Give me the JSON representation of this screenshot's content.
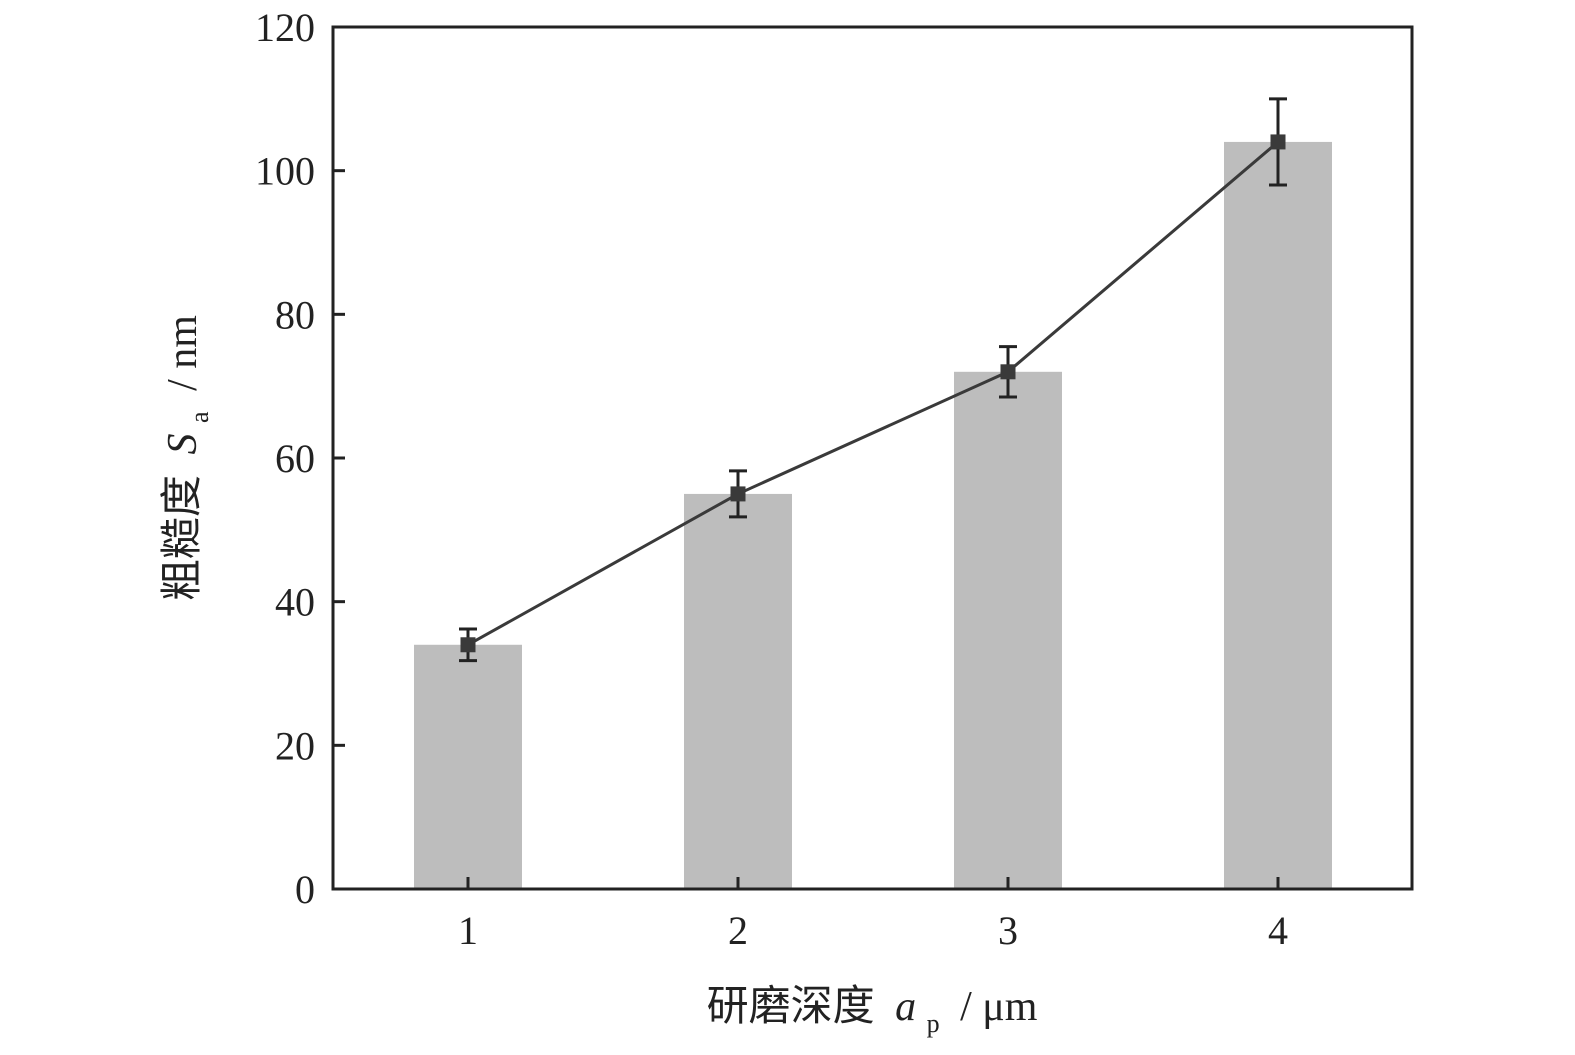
{
  "chart_data": {
    "type": "bar",
    "categories": [
      "1",
      "2",
      "3",
      "4"
    ],
    "series": [
      {
        "type": "bar",
        "values": [
          34,
          55,
          72,
          104
        ],
        "color": "#bdbdbd"
      },
      {
        "type": "line",
        "values": [
          34,
          55,
          72,
          104
        ],
        "error": [
          2.2,
          3.2,
          3.5,
          6.0
        ],
        "color": "#3a3a3a",
        "marker": "square"
      }
    ],
    "xlabel": {
      "prefix": "研磨深度",
      "symbol": "a",
      "subscript": "p",
      "unit": "/ μm"
    },
    "ylabel": {
      "prefix": "粗糙度",
      "symbol": "S",
      "subscript": "a",
      "unit": "/ nm"
    },
    "ylim": [
      0,
      120
    ],
    "yticks": [
      0,
      20,
      40,
      60,
      80,
      100,
      120
    ],
    "grid": false
  }
}
